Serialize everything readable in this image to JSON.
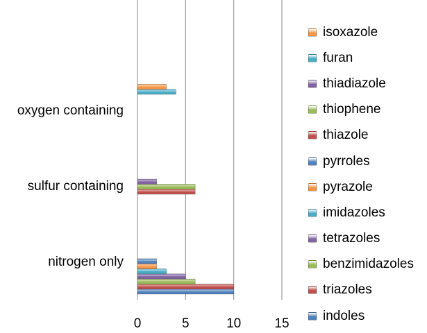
{
  "chart_data": {
    "type": "bar",
    "orientation": "horizontal",
    "categories": [
      "nitrogen only",
      "sulfur containing",
      "oxygen containing"
    ],
    "xlim": [
      0,
      15
    ],
    "xticks": [
      "0",
      "5",
      "10",
      "15"
    ],
    "grid": true,
    "legend_position": "right",
    "series": [
      {
        "name": "indoles",
        "color": "#4F81BD",
        "values": [
          10,
          0,
          0
        ]
      },
      {
        "name": "triazoles",
        "color": "#C0504D",
        "values": [
          10,
          0,
          0
        ]
      },
      {
        "name": "benzimidazoles",
        "color": "#9BBB59",
        "values": [
          6,
          0,
          0
        ]
      },
      {
        "name": "tetrazoles",
        "color": "#8064A2",
        "values": [
          5,
          0,
          0
        ]
      },
      {
        "name": "imidazoles",
        "color": "#4BACC6",
        "values": [
          3,
          0,
          0
        ]
      },
      {
        "name": "pyrazole",
        "color": "#F79646",
        "values": [
          2,
          0,
          0
        ]
      },
      {
        "name": "pyrroles",
        "color": "#4F81BD",
        "values": [
          2,
          0,
          0
        ]
      },
      {
        "name": "thiazole",
        "color": "#C0504D",
        "values": [
          0,
          6,
          0
        ]
      },
      {
        "name": "thiophene",
        "color": "#9BBB59",
        "values": [
          0,
          6,
          0
        ]
      },
      {
        "name": "thiadiazole",
        "color": "#8064A2",
        "values": [
          0,
          2,
          0
        ]
      },
      {
        "name": "furan",
        "color": "#4BACC6",
        "values": [
          0,
          0,
          4
        ]
      },
      {
        "name": "isoxazole",
        "color": "#F79646",
        "values": [
          0,
          0,
          3
        ]
      }
    ]
  }
}
